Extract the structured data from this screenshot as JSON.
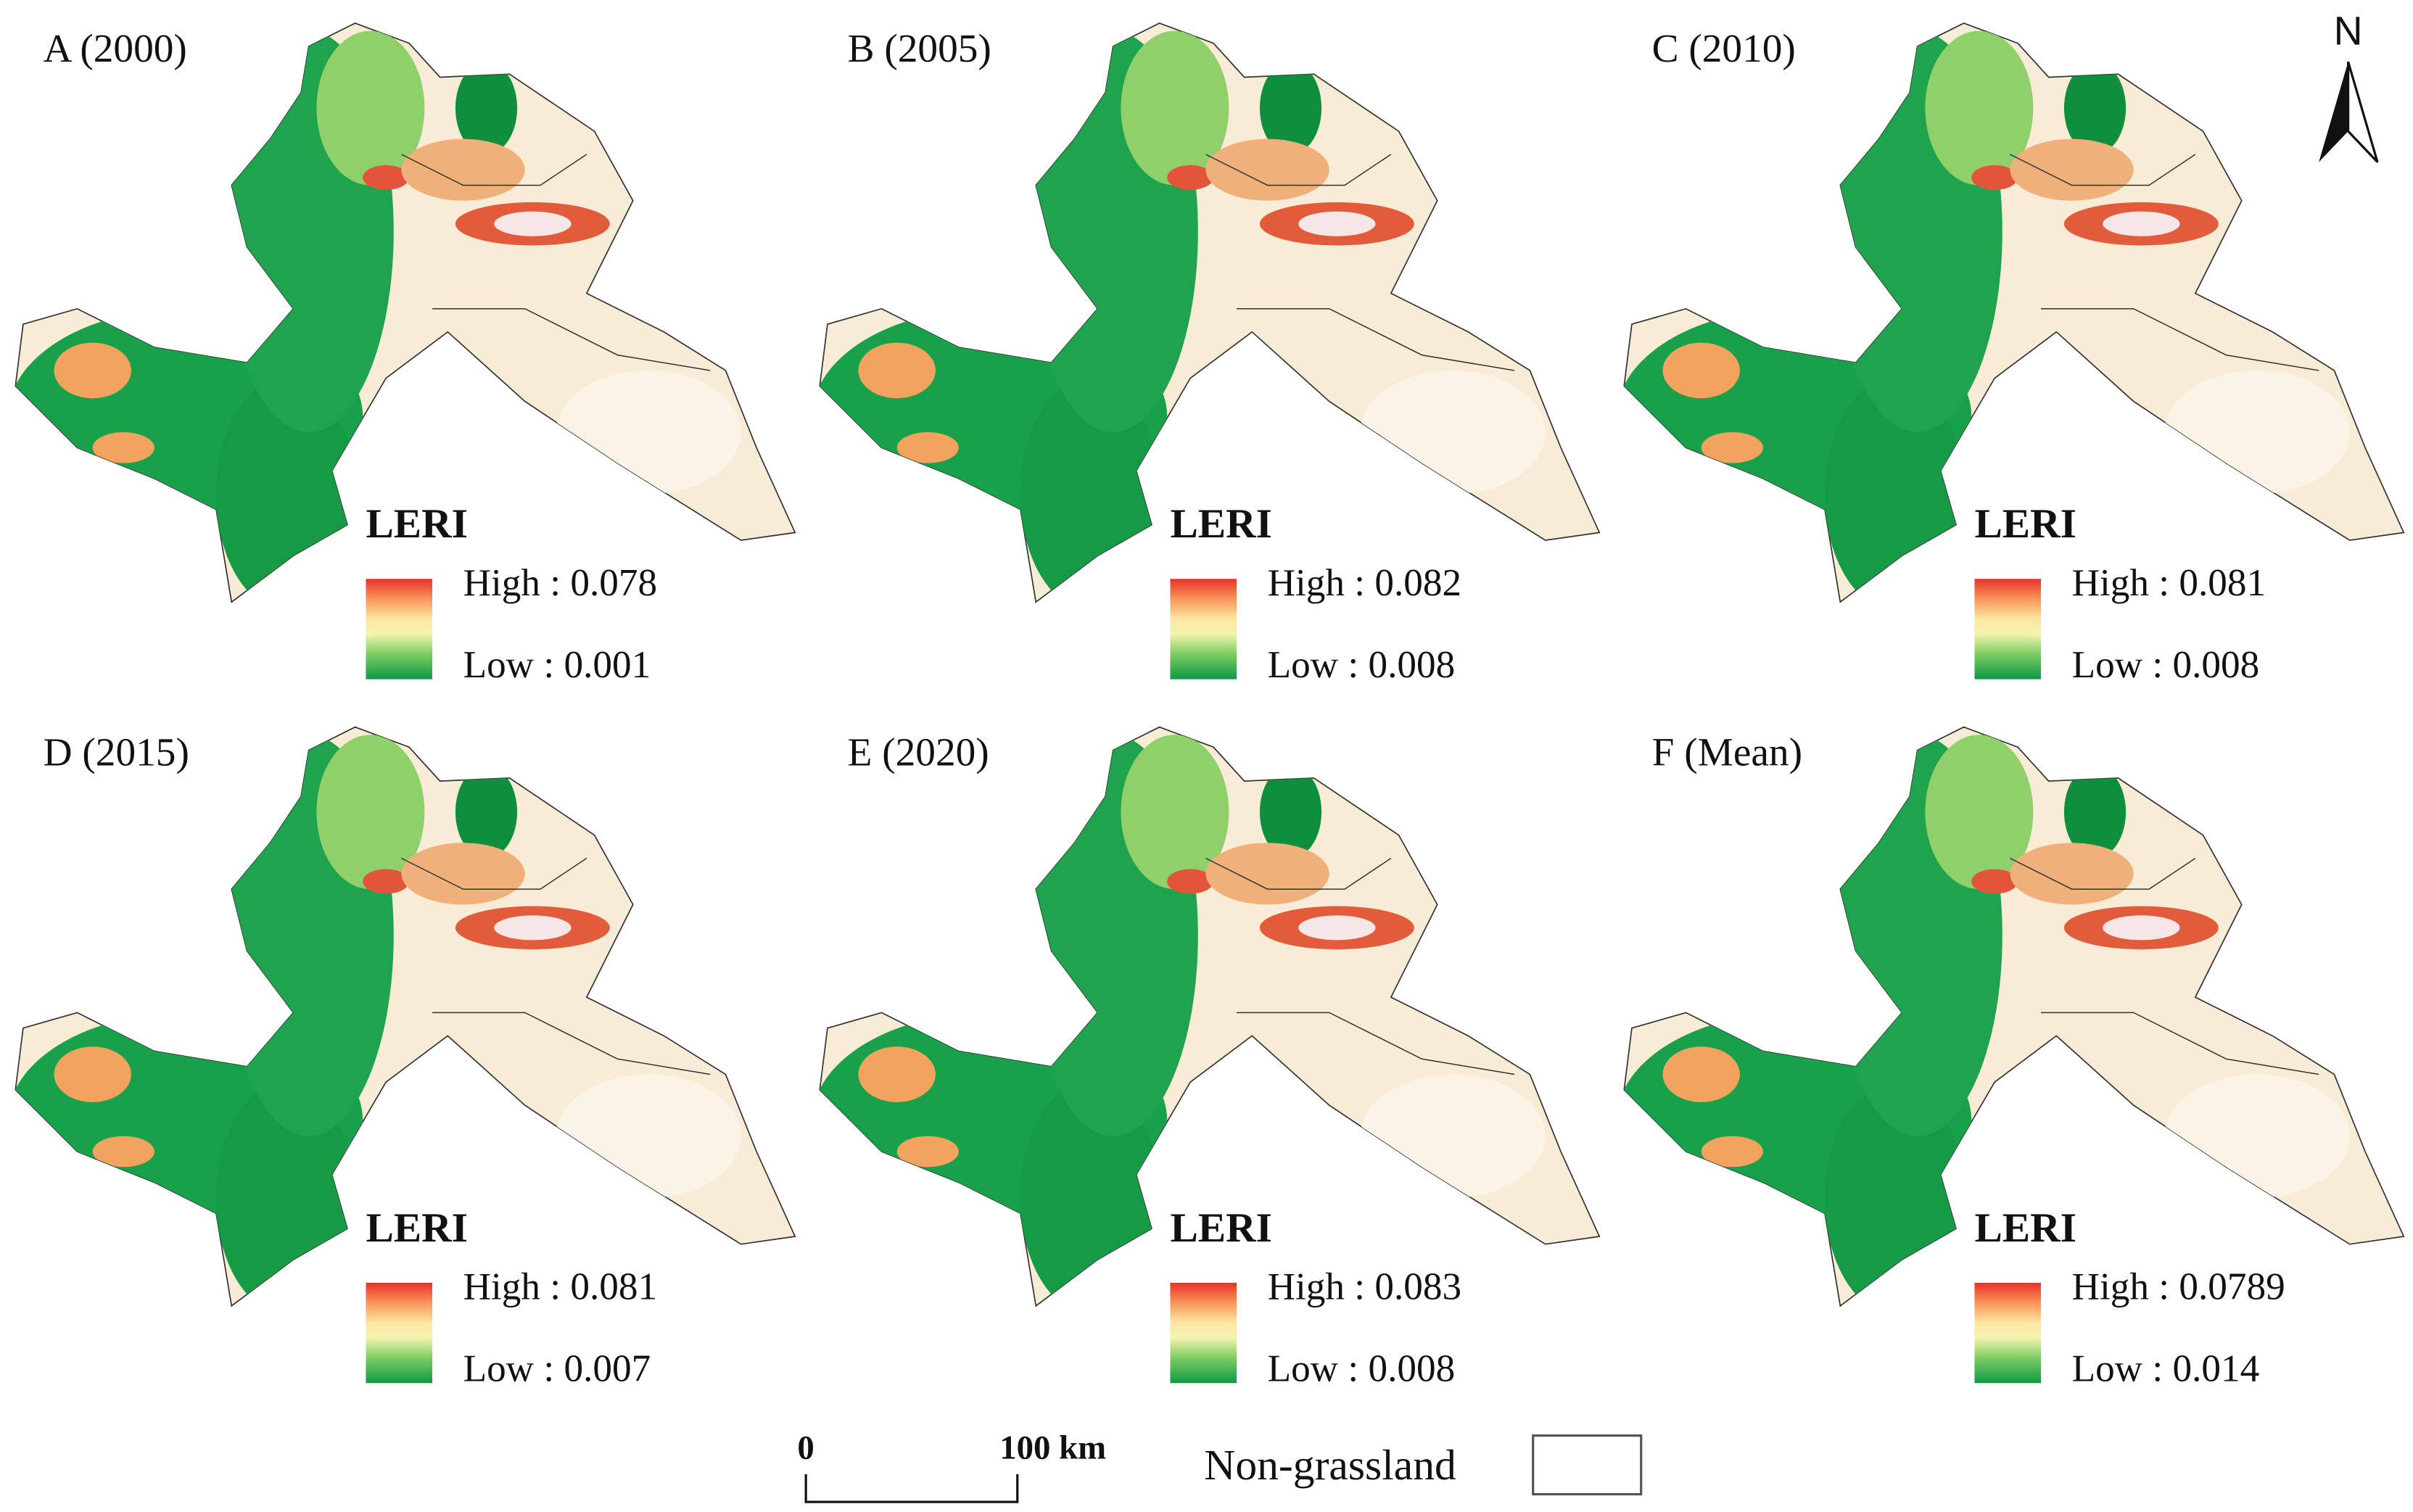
{
  "panels": [
    {
      "label": "A (2000)",
      "legend_title": "LERI",
      "high": "High : 0.078",
      "low": "Low : 0.001"
    },
    {
      "label": "B (2005)",
      "legend_title": "LERI",
      "high": "High : 0.082",
      "low": "Low : 0.008"
    },
    {
      "label": "C (2010)",
      "legend_title": "LERI",
      "high": "High : 0.081",
      "low": "Low : 0.008"
    },
    {
      "label": "D (2015)",
      "legend_title": "LERI",
      "high": "High : 0.081",
      "low": "Low : 0.007"
    },
    {
      "label": "E (2020)",
      "legend_title": "LERI",
      "high": "High : 0.083",
      "low": "Low : 0.008"
    },
    {
      "label": "F (Mean)",
      "legend_title": "LERI",
      "high": "High : 0.0789",
      "low": "Low : 0.014"
    }
  ],
  "scale_bar": {
    "start": "0",
    "end": "100 km"
  },
  "legend": {
    "non_grassland": "Non-grassland"
  },
  "north_arrow": "N"
}
